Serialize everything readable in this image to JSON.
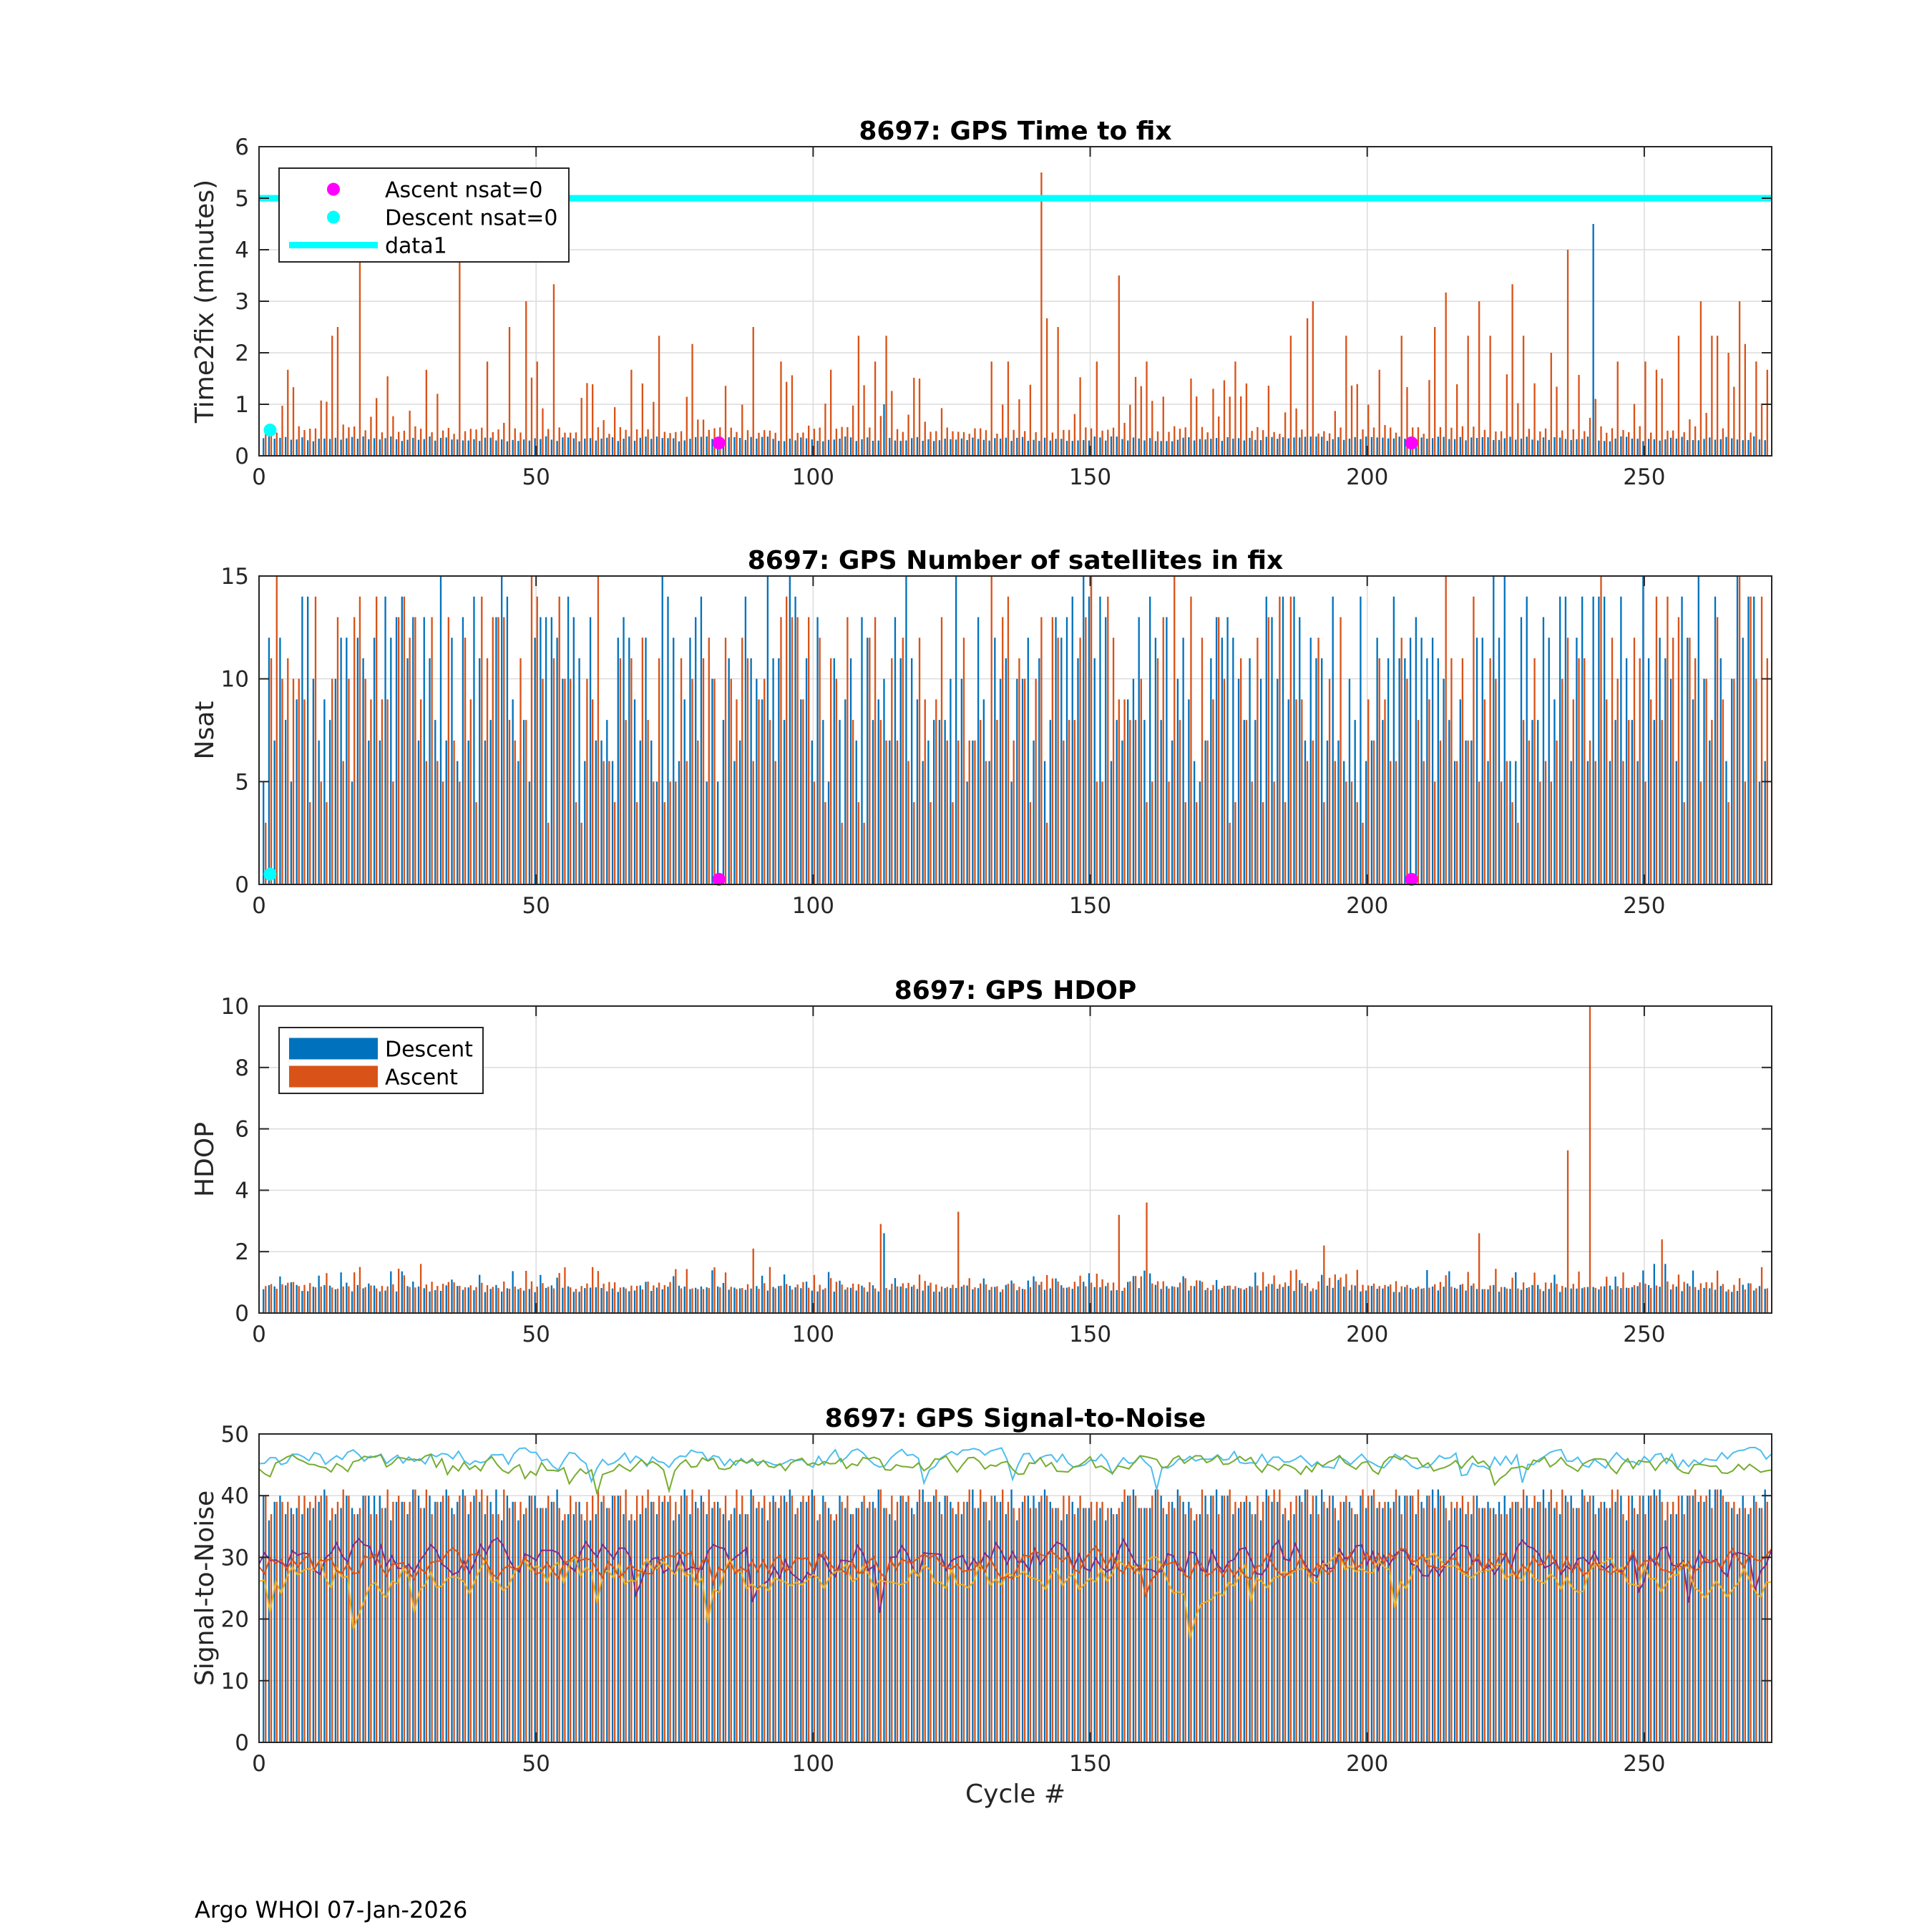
{
  "footer": "Argo WHOI 07-Jan-2026",
  "colors": {
    "descent": "#0072BD",
    "ascent": "#D95319",
    "cyan": "#00FFFF",
    "magenta": "#FF00FF",
    "grid": "#DCDCDC",
    "snr_lines": [
      "#4DBEEE",
      "#77AC30",
      "#7E2F8E",
      "#EDB120",
      "#D95319"
    ]
  },
  "chart_data": [
    {
      "type": "bar",
      "title": "8697: GPS Time to fix",
      "xlabel": "",
      "ylabel": "Time2fix (minutes)",
      "xlim": [
        0,
        273
      ],
      "ylim": [
        0,
        6
      ],
      "xticks": [
        0,
        50,
        100,
        150,
        200,
        250
      ],
      "yticks": [
        0,
        1,
        2,
        3,
        4,
        5,
        6
      ],
      "legend": {
        "position": "top-left",
        "entries": [
          {
            "label": "Ascent nsat=0",
            "style": "dot",
            "color": "#FF00FF"
          },
          {
            "label": "Descent nsat=0",
            "style": "dot",
            "color": "#00FFFF"
          },
          {
            "label": "data1",
            "style": "line",
            "color": "#00FFFF"
          }
        ]
      },
      "series": [
        {
          "name": "Descent",
          "color": "#0072BD",
          "baseline": 0.33,
          "spikes": [
            [
              113,
              1.0
            ],
            [
              241,
              4.5
            ]
          ]
        },
        {
          "name": "Ascent",
          "color": "#D95319",
          "baseline": 0.5,
          "spikes": [
            [
              5,
              1.67
            ],
            [
              13,
              2.33
            ],
            [
              14,
              2.5
            ],
            [
              18,
              3.83
            ],
            [
              30,
              1.67
            ],
            [
              36,
              3.83
            ],
            [
              41,
              1.83
            ],
            [
              45,
              2.5
            ],
            [
              48,
              3.0
            ],
            [
              50,
              1.83
            ],
            [
              53,
              3.33
            ],
            [
              67,
              1.67
            ],
            [
              72,
              2.33
            ],
            [
              78,
              2.17
            ],
            [
              89,
              2.5
            ],
            [
              94,
              1.83
            ],
            [
              103,
              1.67
            ],
            [
              108,
              2.33
            ],
            [
              111,
              1.83
            ],
            [
              113,
              2.33
            ],
            [
              119,
              1.5
            ],
            [
              132,
              1.83
            ],
            [
              135,
              1.83
            ],
            [
              141,
              5.5
            ],
            [
              142,
              2.67
            ],
            [
              144,
              2.5
            ],
            [
              151,
              1.83
            ],
            [
              155,
              3.5
            ],
            [
              160,
              1.83
            ],
            [
              168,
              1.5
            ],
            [
              176,
              1.83
            ],
            [
              186,
              2.33
            ],
            [
              189,
              2.67
            ],
            [
              190,
              3.0
            ],
            [
              196,
              2.33
            ],
            [
              202,
              1.67
            ],
            [
              206,
              2.33
            ],
            [
              212,
              2.5
            ],
            [
              214,
              3.17
            ],
            [
              218,
              2.33
            ],
            [
              220,
              3.0
            ],
            [
              222,
              2.33
            ],
            [
              226,
              3.33
            ],
            [
              228,
              2.33
            ],
            [
              233,
              2.0
            ],
            [
              236,
              4.0
            ],
            [
              245,
              1.83
            ],
            [
              250,
              1.83
            ],
            [
              252,
              1.67
            ],
            [
              253,
              1.5
            ],
            [
              256,
              2.33
            ],
            [
              260,
              3.0
            ],
            [
              262,
              2.33
            ],
            [
              263,
              2.33
            ],
            [
              265,
              2.0
            ],
            [
              267,
              3.0
            ],
            [
              268,
              2.17
            ],
            [
              270,
              1.83
            ],
            [
              272,
              1.67
            ]
          ]
        }
      ],
      "reference_line": {
        "name": "data1",
        "y": 5,
        "color": "#00FFFF"
      },
      "markers": [
        {
          "name": "Ascent nsat=0",
          "x": [
            83,
            208
          ],
          "y": [
            0.25,
            0.25
          ],
          "color": "#FF00FF"
        },
        {
          "name": "Descent nsat=0",
          "x": [
            2
          ],
          "y": [
            0.5
          ],
          "color": "#00FFFF"
        }
      ]
    },
    {
      "type": "bar",
      "title": "8697: GPS Number of satellites in fix",
      "xlabel": "",
      "ylabel": "Nsat",
      "xlim": [
        0,
        273
      ],
      "ylim": [
        0,
        15
      ],
      "xticks": [
        0,
        50,
        100,
        150,
        200,
        250
      ],
      "yticks": [
        0,
        5,
        10,
        15
      ],
      "series": [
        {
          "name": "Descent",
          "color": "#0072BD",
          "range": [
            5,
            15
          ]
        },
        {
          "name": "Ascent",
          "color": "#D95319",
          "range": [
            3,
            15
          ]
        }
      ],
      "markers": [
        {
          "name": "Ascent nsat=0",
          "x": [
            83,
            208
          ],
          "y": [
            0.25,
            0.25
          ],
          "color": "#FF00FF"
        },
        {
          "name": "Descent nsat=0",
          "x": [
            2
          ],
          "y": [
            0.5
          ],
          "color": "#00FFFF"
        }
      ]
    },
    {
      "type": "bar",
      "title": "8697: GPS HDOP",
      "xlabel": "",
      "ylabel": "HDOP",
      "xlim": [
        0,
        273
      ],
      "ylim": [
        0,
        10
      ],
      "xticks": [
        0,
        50,
        100,
        150,
        200,
        250
      ],
      "yticks": [
        0,
        2,
        4,
        6,
        8,
        10
      ],
      "legend": {
        "position": "top-left",
        "entries": [
          {
            "label": "Descent",
            "style": "patch",
            "color": "#0072BD"
          },
          {
            "label": "Ascent",
            "style": "patch",
            "color": "#D95319"
          }
        ]
      },
      "series": [
        {
          "name": "Descent",
          "color": "#0072BD",
          "baseline": 0.8,
          "spikes": [
            [
              113,
              2.6
            ],
            [
              252,
              1.6
            ],
            [
              254,
              1.6
            ]
          ]
        },
        {
          "name": "Ascent",
          "color": "#D95319",
          "baseline": 0.9,
          "spikes": [
            [
              12,
              1.3
            ],
            [
              18,
              1.5
            ],
            [
              29,
              1.6
            ],
            [
              89,
              2.1
            ],
            [
              112,
              2.9
            ],
            [
              126,
              3.3
            ],
            [
              155,
              3.2
            ],
            [
              160,
              3.6
            ],
            [
              192,
              2.2
            ],
            [
              220,
              2.6
            ],
            [
              236,
              5.3
            ],
            [
              240,
              10.0
            ],
            [
              253,
              2.4
            ]
          ]
        }
      ]
    },
    {
      "type": "bar",
      "title": "8697: GPS Signal-to-Noise",
      "xlabel": "Cycle #",
      "ylabel": "Signal-to-Noise",
      "xlim": [
        0,
        273
      ],
      "ylim": [
        0,
        50
      ],
      "xticks": [
        0,
        50,
        100,
        150,
        200,
        250
      ],
      "yticks": [
        0,
        10,
        20,
        30,
        40,
        50
      ],
      "series": [
        {
          "name": "Descent",
          "color": "#0072BD",
          "range": [
            36,
            41
          ]
        },
        {
          "name": "Ascent",
          "color": "#D95319",
          "range": [
            37,
            41
          ]
        }
      ],
      "lines": [
        {
          "color": "#4DBEEE",
          "mean": 46,
          "amplitude": 2.5
        },
        {
          "color": "#77AC30",
          "mean": 45,
          "amplitude": 2.5
        },
        {
          "color": "#7E2F8E",
          "mean": 30,
          "amplitude": 5
        },
        {
          "color": "#EDB120",
          "mean": 27,
          "amplitude": 5
        },
        {
          "color": "#D95319",
          "mean": 29,
          "amplitude": 4
        }
      ]
    }
  ]
}
